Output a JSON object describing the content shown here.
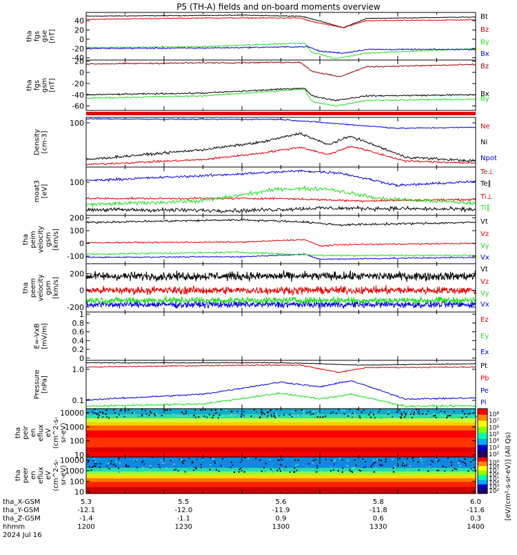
{
  "title": "P5 (TH-A) fields and on-board moments overview",
  "colors": {
    "black": "#000000",
    "red": "#e00000",
    "green": "#22dd22",
    "blue": "#0000dd",
    "darkred": "#990000",
    "white": "#ffffff"
  },
  "chart_data": [
    {
      "type": "line",
      "name": "fgs-gse",
      "ylabel": [
        "tha",
        "fgs",
        "gse",
        "[nT]"
      ],
      "ylim": [
        -45,
        58
      ],
      "ticks": [
        40,
        20,
        0,
        -20,
        -40
      ],
      "series": [
        {
          "name": "Bt",
          "color": "#000000"
        },
        {
          "name": "Bz",
          "color": "#e00000"
        },
        {
          "name": "By",
          "color": "#22dd22"
        },
        {
          "name": "Bx",
          "color": "#0000dd"
        }
      ]
    },
    {
      "type": "line",
      "name": "fgs-gsm",
      "ylabel": [
        "tha",
        "fgs",
        "gsm",
        "[nT]"
      ],
      "ylim": [
        -68,
        22
      ],
      "ticks": [
        20,
        0,
        -20,
        -40,
        -60
      ],
      "series": [
        {
          "name": "Bz",
          "color": "#990000"
        },
        {
          "name": "Bx",
          "color": "#000000"
        },
        {
          "name": "By",
          "color": "#22dd22"
        }
      ]
    },
    {
      "type": "line",
      "name": "density",
      "ylabel": [
        "Density",
        "[cm-3]"
      ],
      "scale": "log",
      "ticks": [
        100
      ],
      "series": [
        {
          "name": "Ne",
          "color": "#e00000"
        },
        {
          "name": "Ni",
          "color": "#000000"
        },
        {
          "name": "Npot",
          "color": "#0000dd"
        }
      ]
    },
    {
      "type": "line",
      "name": "temperature",
      "ylabel": [
        "moat3",
        "[eV]"
      ],
      "scale": "log",
      "ticks": [
        100
      ],
      "series": [
        {
          "name": "Te⊥",
          "color": "#e00000"
        },
        {
          "name": "Te∥",
          "color": "#000000"
        },
        {
          "name": "Ti⊥",
          "color": "#e00000"
        },
        {
          "name": "Ti∥",
          "color": "#22dd22"
        }
      ]
    },
    {
      "type": "line",
      "name": "peim-velocity",
      "ylabel": [
        "tha",
        "peim",
        "velocity",
        "gsm",
        "[km/s]"
      ],
      "ylim": [
        -160,
        220
      ],
      "ticks": [
        200,
        100,
        0,
        -100
      ],
      "series": [
        {
          "name": "Vt",
          "color": "#000000"
        },
        {
          "name": "Vz",
          "color": "#e00000"
        },
        {
          "name": "Vy",
          "color": "#22dd22"
        },
        {
          "name": "Vx",
          "color": "#0000dd"
        }
      ]
    },
    {
      "type": "line",
      "name": "peem-velocity",
      "ylabel": [
        "tha",
        "peem",
        "velocity",
        "gsm",
        "[km/s]"
      ],
      "ylim": [
        -260,
        320
      ],
      "ticks": [
        200,
        0,
        -200
      ],
      "series": [
        {
          "name": "Vt",
          "color": "#000000"
        },
        {
          "name": "Vz",
          "color": "#e00000"
        },
        {
          "name": "Vy",
          "color": "#22dd22"
        },
        {
          "name": "Vx",
          "color": "#0000dd"
        }
      ]
    },
    {
      "type": "line",
      "name": "efield",
      "ylabel": [
        "E=-VxB",
        "[mV/m]"
      ],
      "ylim": [
        -0.05,
        1.05
      ],
      "ticks": [
        1.0,
        0.8,
        0.6,
        0.4,
        0.2,
        0.0
      ],
      "series": [
        {
          "name": "Ez",
          "color": "#e00000"
        },
        {
          "name": "Ey",
          "color": "#22dd22"
        },
        {
          "name": "Ex",
          "color": "#0000dd"
        }
      ]
    },
    {
      "type": "line",
      "name": "pressure",
      "ylabel": [
        "Pressure",
        "[nPa]"
      ],
      "scale": "log",
      "ticks": [
        1.0,
        0.1
      ],
      "series": [
        {
          "name": "Pt",
          "color": "#000000"
        },
        {
          "name": "Pb",
          "color": "#e00000"
        },
        {
          "name": "Pe",
          "color": "#0000dd"
        },
        {
          "name": "Pi",
          "color": "#0000dd"
        }
      ]
    },
    {
      "type": "heatmap",
      "name": "peir-eflux",
      "ylabel": [
        "tha",
        "peir",
        "en",
        "eflux",
        "eV",
        "(cm^2-s-",
        "sr-eV)"
      ],
      "ticks": [
        10000,
        1000,
        100,
        10
      ],
      "colorbar_ticks": [
        "10⁸",
        "10⁷",
        "10⁶",
        "10⁵",
        "10⁴",
        "10³",
        "10²"
      ]
    },
    {
      "type": "heatmap",
      "name": "peer-eflux",
      "ylabel": [
        "tha",
        "peer",
        "en",
        "eflux",
        "eV",
        "(cm^2-s-",
        "sr-eV)"
      ],
      "ticks": [
        10000,
        1000,
        100,
        10
      ],
      "colorbar_ticks": [
        "10⁹",
        "10⁸",
        "10⁷",
        "10⁶",
        "10⁵",
        "10⁴",
        "10³",
        "10²"
      ]
    }
  ],
  "colorbar_label": "[eV/(cm²-s-sr-eV)] (All Qs)",
  "xaxis": {
    "rows": [
      {
        "label": "tha_X-GSM",
        "values": [
          "5.3",
          "5.5",
          "5.6",
          "5.8",
          "6.0"
        ]
      },
      {
        "label": "tha_Y-GSM",
        "values": [
          "-12.1",
          "-12.0",
          "-11.9",
          "-11.8",
          "-11.6"
        ]
      },
      {
        "label": "tha_Z-GSM",
        "values": [
          "-1.4",
          "-1.1",
          "0.9",
          "0.6",
          "0.3"
        ]
      },
      {
        "label": "hhmm",
        "values": [
          "1200",
          "1230",
          "1300",
          "1330",
          "1400"
        ]
      },
      {
        "label": "2024 Jul 16",
        "values": []
      }
    ]
  }
}
